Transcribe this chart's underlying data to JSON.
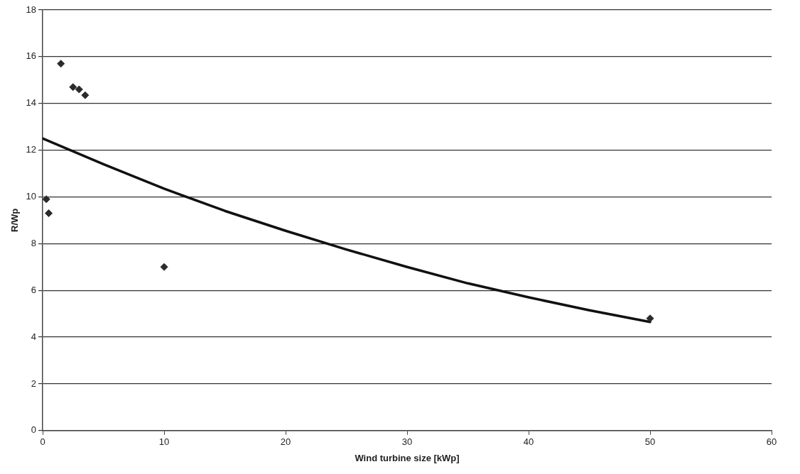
{
  "chart_data": {
    "type": "scatter",
    "xlabel": "Wind turbine size [kWp]",
    "ylabel": "R/Wp",
    "xlim": [
      0,
      60
    ],
    "xticks": [
      0,
      10,
      20,
      30,
      40,
      50,
      60
    ],
    "ylim": [
      0,
      18
    ],
    "yticks": [
      0,
      2,
      4,
      6,
      8,
      10,
      12,
      14,
      16,
      18
    ],
    "grid": "y",
    "legend": false,
    "marker": "diamond",
    "series": [
      {
        "type": "scatter",
        "color": "#2b2b2b",
        "x": [
          0.3,
          0.5,
          1.5,
          2.5,
          3,
          3.5,
          10,
          50
        ],
        "values": [
          9.9,
          9.3,
          15.7,
          14.7,
          14.6,
          14.35,
          7,
          4.8
        ]
      },
      {
        "type": "line",
        "color": "#111111",
        "marker": "none",
        "line_style": "solid",
        "x": [
          0,
          5,
          10,
          15,
          20,
          25,
          30,
          35,
          40,
          45,
          50
        ],
        "values": [
          12.5,
          11.4,
          10.35,
          9.4,
          8.55,
          7.75,
          7.0,
          6.3,
          5.7,
          5.15,
          4.65
        ]
      }
    ]
  }
}
